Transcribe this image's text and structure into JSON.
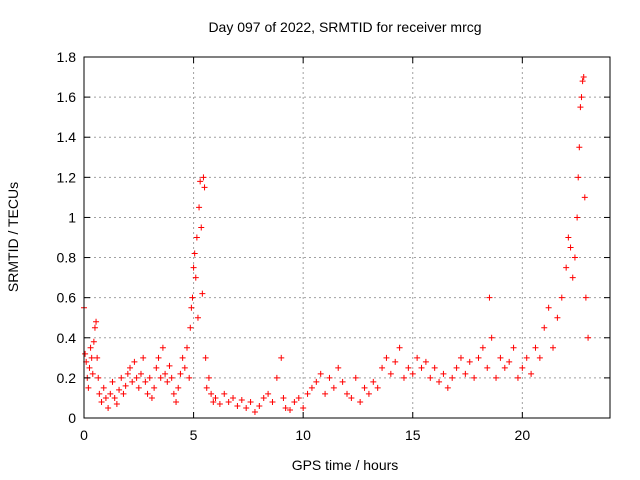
{
  "chart_data": {
    "type": "scatter",
    "title": "Day 097 of 2022, SRMTID for receiver mrcg",
    "xlabel": "GPS time / hours",
    "ylabel": "SRMTID / TECUs",
    "xlim": [
      0,
      24
    ],
    "ylim": [
      0,
      1.8
    ],
    "xticks": [
      0,
      5,
      10,
      15,
      20
    ],
    "xtick_labels": [
      "0",
      "5",
      "10",
      "15",
      "20"
    ],
    "yticks": [
      0,
      0.2,
      0.4,
      0.6,
      0.8,
      1,
      1.2,
      1.4,
      1.6,
      1.8
    ],
    "ytick_labels": [
      "0",
      "0.2",
      "0.4",
      "0.6",
      "0.8",
      "1",
      "1.2",
      "1.4",
      "1.6",
      "1.8"
    ],
    "grid": true,
    "marker": "+",
    "marker_color": "#ff0000",
    "series": [
      {
        "name": "SRMTID",
        "points": [
          [
            0.0,
            0.55
          ],
          [
            0.05,
            0.32
          ],
          [
            0.1,
            0.28
          ],
          [
            0.15,
            0.2
          ],
          [
            0.2,
            0.15
          ],
          [
            0.25,
            0.25
          ],
          [
            0.3,
            0.35
          ],
          [
            0.35,
            0.3
          ],
          [
            0.4,
            0.22
          ],
          [
            0.45,
            0.38
          ],
          [
            0.5,
            0.45
          ],
          [
            0.55,
            0.48
          ],
          [
            0.6,
            0.3
          ],
          [
            0.65,
            0.2
          ],
          [
            0.7,
            0.12
          ],
          [
            0.8,
            0.08
          ],
          [
            0.9,
            0.15
          ],
          [
            1.0,
            0.1
          ],
          [
            1.1,
            0.05
          ],
          [
            1.2,
            0.12
          ],
          [
            1.3,
            0.18
          ],
          [
            1.4,
            0.1
          ],
          [
            1.5,
            0.07
          ],
          [
            1.6,
            0.14
          ],
          [
            1.7,
            0.2
          ],
          [
            1.8,
            0.12
          ],
          [
            1.9,
            0.16
          ],
          [
            2.0,
            0.22
          ],
          [
            2.1,
            0.25
          ],
          [
            2.2,
            0.18
          ],
          [
            2.3,
            0.28
          ],
          [
            2.4,
            0.2
          ],
          [
            2.5,
            0.15
          ],
          [
            2.6,
            0.22
          ],
          [
            2.7,
            0.3
          ],
          [
            2.8,
            0.18
          ],
          [
            2.9,
            0.12
          ],
          [
            3.0,
            0.2
          ],
          [
            3.1,
            0.1
          ],
          [
            3.2,
            0.15
          ],
          [
            3.3,
            0.25
          ],
          [
            3.4,
            0.3
          ],
          [
            3.5,
            0.2
          ],
          [
            3.6,
            0.35
          ],
          [
            3.7,
            0.22
          ],
          [
            3.8,
            0.18
          ],
          [
            3.9,
            0.26
          ],
          [
            4.0,
            0.2
          ],
          [
            4.1,
            0.12
          ],
          [
            4.2,
            0.08
          ],
          [
            4.3,
            0.15
          ],
          [
            4.4,
            0.22
          ],
          [
            4.5,
            0.3
          ],
          [
            4.6,
            0.25
          ],
          [
            4.7,
            0.35
          ],
          [
            4.8,
            0.2
          ],
          [
            4.85,
            0.45
          ],
          [
            4.9,
            0.55
          ],
          [
            4.95,
            0.6
          ],
          [
            5.0,
            0.75
          ],
          [
            5.05,
            0.82
          ],
          [
            5.1,
            0.7
          ],
          [
            5.15,
            0.9
          ],
          [
            5.2,
            0.5
          ],
          [
            5.25,
            1.05
          ],
          [
            5.3,
            1.18
          ],
          [
            5.35,
            0.95
          ],
          [
            5.4,
            0.62
          ],
          [
            5.45,
            1.2
          ],
          [
            5.5,
            1.15
          ],
          [
            5.55,
            0.3
          ],
          [
            5.6,
            0.15
          ],
          [
            5.7,
            0.2
          ],
          [
            5.8,
            0.12
          ],
          [
            5.9,
            0.08
          ],
          [
            6.0,
            0.1
          ],
          [
            6.2,
            0.07
          ],
          [
            6.4,
            0.12
          ],
          [
            6.6,
            0.08
          ],
          [
            6.8,
            0.1
          ],
          [
            7.0,
            0.06
          ],
          [
            7.2,
            0.09
          ],
          [
            7.4,
            0.05
          ],
          [
            7.6,
            0.08
          ],
          [
            7.8,
            0.03
          ],
          [
            8.0,
            0.06
          ],
          [
            8.2,
            0.1
          ],
          [
            8.4,
            0.12
          ],
          [
            8.6,
            0.08
          ],
          [
            8.8,
            0.2
          ],
          [
            9.0,
            0.3
          ],
          [
            9.1,
            0.1
          ],
          [
            9.2,
            0.05
          ],
          [
            9.4,
            0.04
          ],
          [
            9.6,
            0.08
          ],
          [
            9.8,
            0.1
          ],
          [
            10.0,
            0.05
          ],
          [
            10.2,
            0.12
          ],
          [
            10.4,
            0.15
          ],
          [
            10.6,
            0.18
          ],
          [
            10.8,
            0.22
          ],
          [
            11.0,
            0.12
          ],
          [
            11.2,
            0.2
          ],
          [
            11.4,
            0.15
          ],
          [
            11.6,
            0.25
          ],
          [
            11.8,
            0.18
          ],
          [
            12.0,
            0.12
          ],
          [
            12.2,
            0.1
          ],
          [
            12.4,
            0.2
          ],
          [
            12.6,
            0.08
          ],
          [
            12.8,
            0.15
          ],
          [
            13.0,
            0.12
          ],
          [
            13.2,
            0.18
          ],
          [
            13.4,
            0.15
          ],
          [
            13.6,
            0.25
          ],
          [
            13.8,
            0.3
          ],
          [
            14.0,
            0.22
          ],
          [
            14.2,
            0.28
          ],
          [
            14.4,
            0.35
          ],
          [
            14.6,
            0.2
          ],
          [
            14.8,
            0.25
          ],
          [
            15.0,
            0.22
          ],
          [
            15.2,
            0.3
          ],
          [
            15.4,
            0.25
          ],
          [
            15.6,
            0.28
          ],
          [
            15.8,
            0.2
          ],
          [
            16.0,
            0.25
          ],
          [
            16.2,
            0.18
          ],
          [
            16.4,
            0.22
          ],
          [
            16.6,
            0.15
          ],
          [
            16.8,
            0.2
          ],
          [
            17.0,
            0.25
          ],
          [
            17.2,
            0.3
          ],
          [
            17.4,
            0.22
          ],
          [
            17.6,
            0.28
          ],
          [
            17.8,
            0.2
          ],
          [
            18.0,
            0.3
          ],
          [
            18.2,
            0.35
          ],
          [
            18.4,
            0.25
          ],
          [
            18.5,
            0.6
          ],
          [
            18.6,
            0.4
          ],
          [
            18.8,
            0.2
          ],
          [
            19.0,
            0.3
          ],
          [
            19.2,
            0.25
          ],
          [
            19.4,
            0.28
          ],
          [
            19.6,
            0.35
          ],
          [
            19.8,
            0.2
          ],
          [
            20.0,
            0.25
          ],
          [
            20.2,
            0.3
          ],
          [
            20.4,
            0.22
          ],
          [
            20.6,
            0.35
          ],
          [
            20.8,
            0.3
          ],
          [
            21.0,
            0.45
          ],
          [
            21.2,
            0.55
          ],
          [
            21.4,
            0.35
          ],
          [
            21.6,
            0.5
          ],
          [
            21.8,
            0.6
          ],
          [
            22.0,
            0.75
          ],
          [
            22.1,
            0.9
          ],
          [
            22.2,
            0.85
          ],
          [
            22.3,
            0.7
          ],
          [
            22.4,
            0.8
          ],
          [
            22.5,
            1.0
          ],
          [
            22.55,
            1.2
          ],
          [
            22.6,
            1.35
          ],
          [
            22.65,
            1.55
          ],
          [
            22.7,
            1.6
          ],
          [
            22.75,
            1.68
          ],
          [
            22.8,
            1.7
          ],
          [
            22.85,
            1.1
          ],
          [
            22.9,
            0.6
          ],
          [
            23.0,
            0.4
          ]
        ]
      }
    ]
  }
}
